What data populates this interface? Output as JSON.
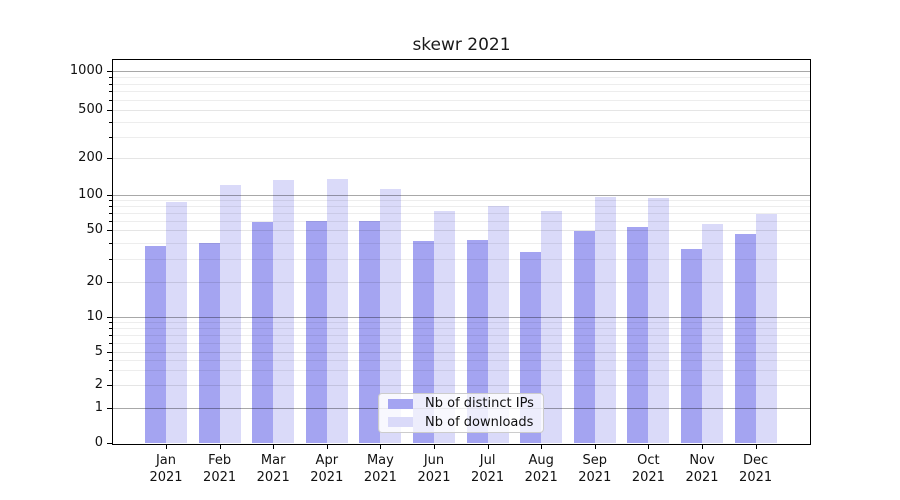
{
  "title": "skewr 2021",
  "colors": {
    "ips_bar": "#a4a4f1",
    "downloads_bar": "#dadaf9",
    "grid_decade": "rgba(0,0,0,0.34)",
    "grid_labeled": "rgba(0,0,0,0.10)",
    "grid_minor": "rgba(0,0,0,0.07)",
    "axis_line": "#000000",
    "tick_text": "#111111",
    "legend_border": "#cccccc"
  },
  "legend": {
    "items": [
      {
        "label": "Nb of distinct IPs",
        "series": "ips"
      },
      {
        "label": "Nb of downloads",
        "series": "downloads"
      }
    ]
  },
  "chart_data": {
    "type": "bar",
    "title": "skewr 2021",
    "categories": [
      "Jan 2021",
      "Feb 2021",
      "Mar 2021",
      "Apr 2021",
      "May 2021",
      "Jun 2021",
      "Jul 2021",
      "Aug 2021",
      "Sep 2021",
      "Oct 2021",
      "Nov 2021",
      "Dec 2021"
    ],
    "series": [
      {
        "name": "Nb of distinct IPs",
        "values": [
          38,
          40,
          59,
          60,
          60,
          41,
          42,
          34,
          49,
          53,
          36,
          47
        ]
      },
      {
        "name": "Nb of downloads",
        "values": [
          87,
          121,
          132,
          135,
          112,
          73,
          80,
          73,
          96,
          94,
          56,
          69
        ]
      }
    ],
    "xlabel": "",
    "ylabel": "",
    "yscale": "symlog-like",
    "y_ticks": [
      0,
      1,
      2,
      5,
      10,
      20,
      50,
      100,
      200,
      500,
      1000
    ],
    "y_minor_ticks": [
      3,
      4,
      6,
      7,
      8,
      9,
      30,
      40,
      60,
      70,
      80,
      90,
      300,
      400,
      600,
      700,
      800,
      900
    ],
    "ylim": [
      0,
      1400
    ],
    "grid": true,
    "legend_position": "lower center"
  }
}
